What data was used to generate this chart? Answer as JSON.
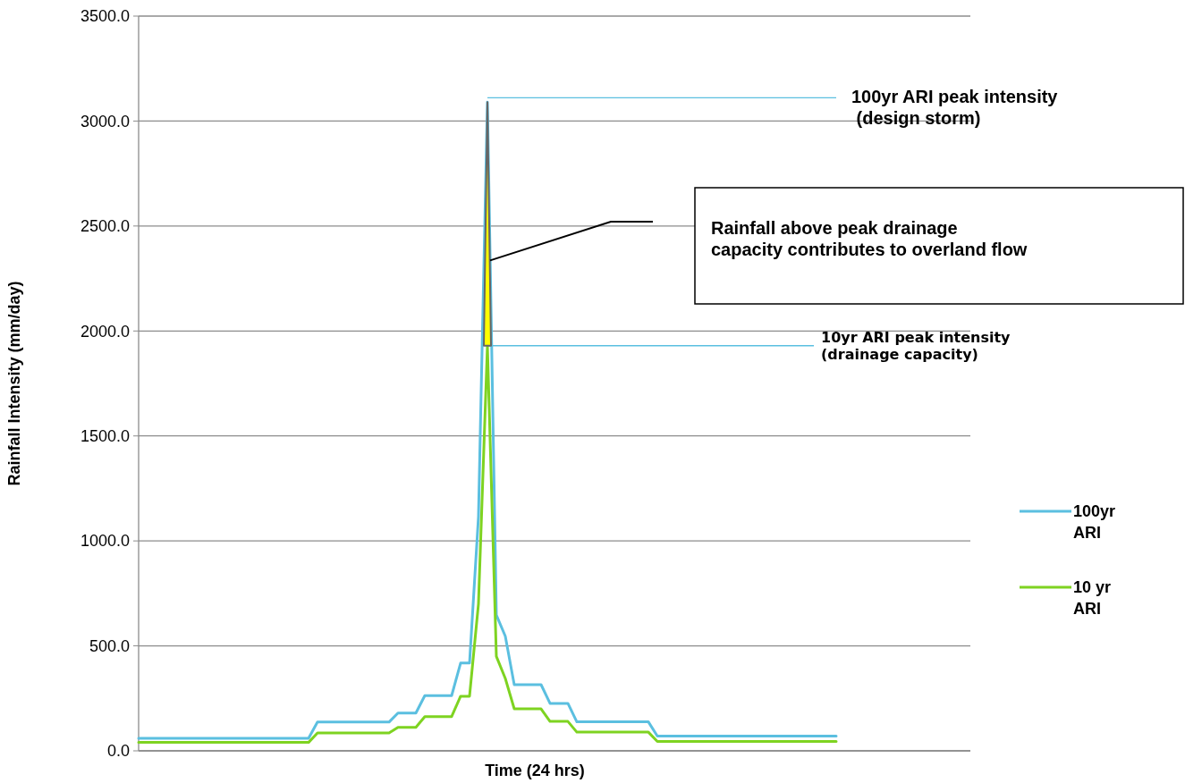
{
  "chart_data": {
    "type": "line",
    "xlabel": "Time (24 hrs)",
    "ylabel": "Rainfall Intensity (mm/day)",
    "categories": [
      null,
      null,
      null,
      null,
      null,
      null,
      null,
      null,
      null,
      null,
      null,
      null,
      null,
      null,
      null,
      null,
      null,
      null,
      null,
      null,
      null,
      null,
      null,
      null,
      null,
      null,
      null,
      null,
      null,
      null,
      null,
      null,
      null,
      null,
      null,
      null,
      null,
      null,
      null,
      null,
      null,
      null,
      null,
      null,
      null,
      null,
      null,
      null,
      null,
      null,
      null,
      null,
      null,
      null,
      null,
      null,
      null,
      null,
      null,
      null,
      null,
      null,
      null,
      null,
      null,
      null,
      null,
      null,
      null,
      null,
      null,
      null,
      null,
      null,
      null,
      null,
      null,
      null,
      null,
      null,
      null,
      null,
      null,
      null,
      null,
      null,
      null,
      null,
      null,
      null,
      null,
      null,
      null,
      null
    ],
    "series": [
      {
        "name": "100yr ARI",
        "color": "#5bbfe0",
        "values": [
          60,
          60,
          60,
          60,
          60,
          60,
          60,
          60,
          60,
          60,
          60,
          60,
          60,
          60,
          60,
          60,
          60,
          60,
          60,
          60,
          137,
          137,
          137,
          137,
          137,
          137,
          137,
          137,
          137,
          180,
          180,
          180,
          263,
          263,
          263,
          263,
          418,
          418,
          1115,
          3090,
          647,
          546,
          315,
          315,
          315,
          315,
          226,
          226,
          226,
          138,
          138,
          138,
          138,
          138,
          138,
          138,
          138,
          138,
          70,
          70,
          70,
          70,
          70,
          70,
          70,
          70,
          70,
          70,
          70,
          70,
          70,
          70,
          70,
          70,
          70,
          70,
          70,
          70,
          70,
          null,
          null,
          null,
          null,
          null,
          null,
          null,
          null,
          null,
          null,
          null,
          null,
          null,
          null,
          null
        ]
      },
      {
        "name": "10 yr ARI",
        "color": "#7ed321",
        "values": [
          40,
          40,
          40,
          40,
          40,
          40,
          40,
          40,
          40,
          40,
          40,
          40,
          40,
          40,
          40,
          40,
          40,
          40,
          40,
          40,
          85,
          85,
          85,
          85,
          85,
          85,
          85,
          85,
          85,
          112,
          112,
          112,
          163,
          163,
          163,
          163,
          260,
          260,
          700,
          1930,
          450,
          345,
          200,
          200,
          200,
          200,
          140,
          140,
          140,
          89,
          89,
          89,
          89,
          89,
          89,
          89,
          89,
          89,
          45,
          45,
          45,
          45,
          45,
          45,
          45,
          45,
          45,
          45,
          45,
          45,
          45,
          45,
          45,
          45,
          45,
          45,
          45,
          45,
          45,
          null,
          null,
          null,
          null,
          null,
          null,
          null,
          null,
          null,
          null,
          null,
          null,
          null,
          null,
          null
        ]
      }
    ],
    "ylim": [
      0,
      3500
    ],
    "yticks": [
      {
        "value": 0,
        "label": "0.0"
      },
      {
        "value": 500,
        "label": "500.0"
      },
      {
        "value": 1000,
        "label": "1000.0"
      },
      {
        "value": 1500,
        "label": "1500.0"
      },
      {
        "value": 2000,
        "label": "2000.0"
      },
      {
        "value": 2500,
        "label": "2500.0"
      },
      {
        "value": 3000,
        "label": "3000.0"
      },
      {
        "value": 3500,
        "label": "3500.0"
      }
    ],
    "grid": "y",
    "legend": "right",
    "marker": "none",
    "line_style": "solid",
    "annotations": [
      "100yr ARI peak intensity\n (design storm)",
      "10yr ARI peak intensity\n(drainage capacity)",
      "Rainfall above peak drainage\ncapacity contributes to overland flow"
    ]
  }
}
